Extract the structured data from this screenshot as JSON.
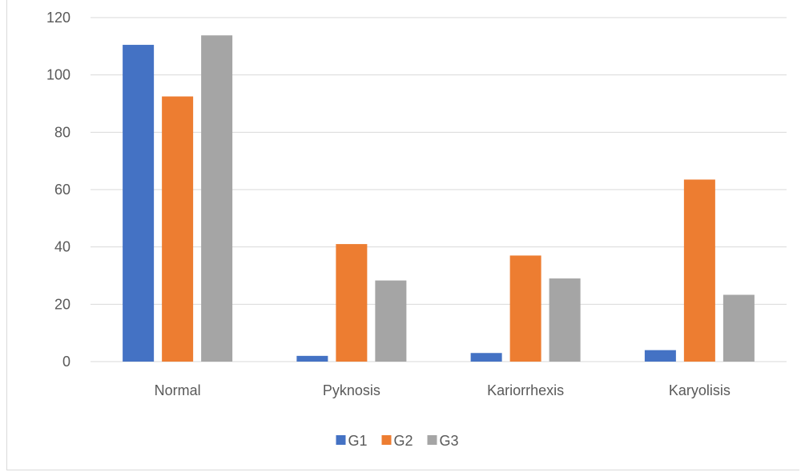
{
  "chart_data": {
    "type": "bar",
    "categories": [
      "Normal",
      "Pyknosis",
      "Kariorrhexis",
      "Karyolisis"
    ],
    "series": [
      {
        "name": "G1",
        "color": "#4472c4",
        "values": [
          110.5,
          2,
          3,
          4
        ]
      },
      {
        "name": "G2",
        "color": "#ed7d31",
        "values": [
          92.5,
          41,
          37,
          63.5
        ]
      },
      {
        "name": "G3",
        "color": "#a5a5a5",
        "values": [
          113.8,
          28.3,
          29,
          23.3
        ]
      }
    ],
    "yticks": [
      "0",
      "20",
      "40",
      "60",
      "80",
      "100",
      "120"
    ],
    "ylim": [
      0,
      120
    ],
    "grid": true,
    "legend_position": "bottom"
  }
}
